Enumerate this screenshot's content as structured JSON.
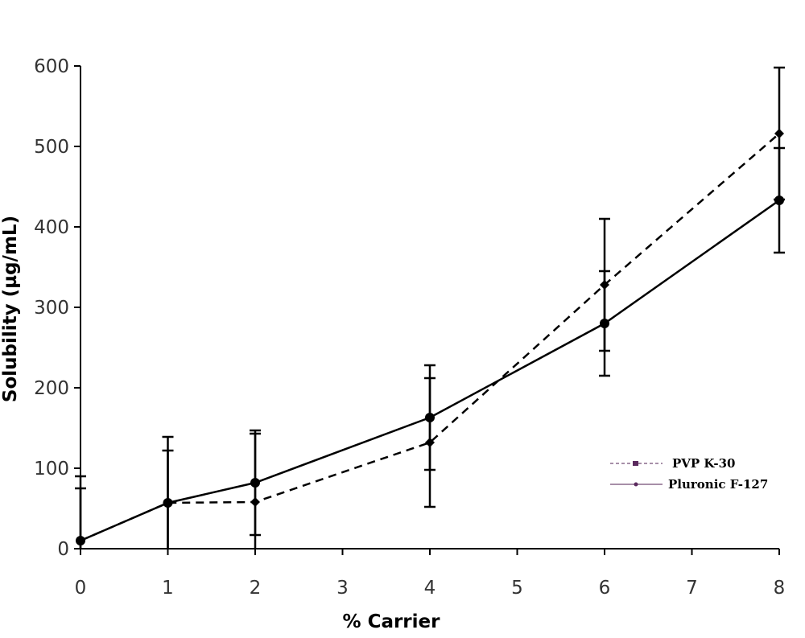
{
  "chart_data": {
    "type": "line",
    "title": "",
    "xlabel": "% Carrier",
    "ylabel": "Solubility (µg/mL)",
    "xlim": [
      0,
      8
    ],
    "ylim": [
      0,
      600
    ],
    "xticks": [
      "0",
      "1",
      "2",
      "3",
      "4",
      "5",
      "6",
      "7",
      "8"
    ],
    "yticks": [
      "0",
      "100",
      "200",
      "300",
      "400",
      "500",
      "600"
    ],
    "grid": false,
    "legend_position": "bottom-right",
    "series": [
      {
        "name": "PVP K-30",
        "line_style": "dashed",
        "color": "#000000",
        "legend_color": "#5b2a5e",
        "points": [
          {
            "x": 0,
            "y": 10,
            "err": 80
          },
          {
            "x": 1,
            "y": 57,
            "err": 65
          },
          {
            "x": 2,
            "y": 58,
            "err": 85
          },
          {
            "x": 4,
            "y": 132,
            "err": 80
          },
          {
            "x": 6,
            "y": 328,
            "err": 82
          },
          {
            "x": 8,
            "y": 516,
            "err": 82
          }
        ]
      },
      {
        "name": "Pluronic F-127",
        "line_style": "solid",
        "color": "#000000",
        "legend_color": "#5b2a5e",
        "points": [
          {
            "x": 0,
            "y": 10,
            "err": 65
          },
          {
            "x": 1,
            "y": 57,
            "err": 82
          },
          {
            "x": 2,
            "y": 82,
            "err": 65
          },
          {
            "x": 4,
            "y": 163,
            "err": 65
          },
          {
            "x": 6,
            "y": 280,
            "err": 65
          },
          {
            "x": 8,
            "y": 433,
            "err": 65
          }
        ]
      }
    ]
  }
}
